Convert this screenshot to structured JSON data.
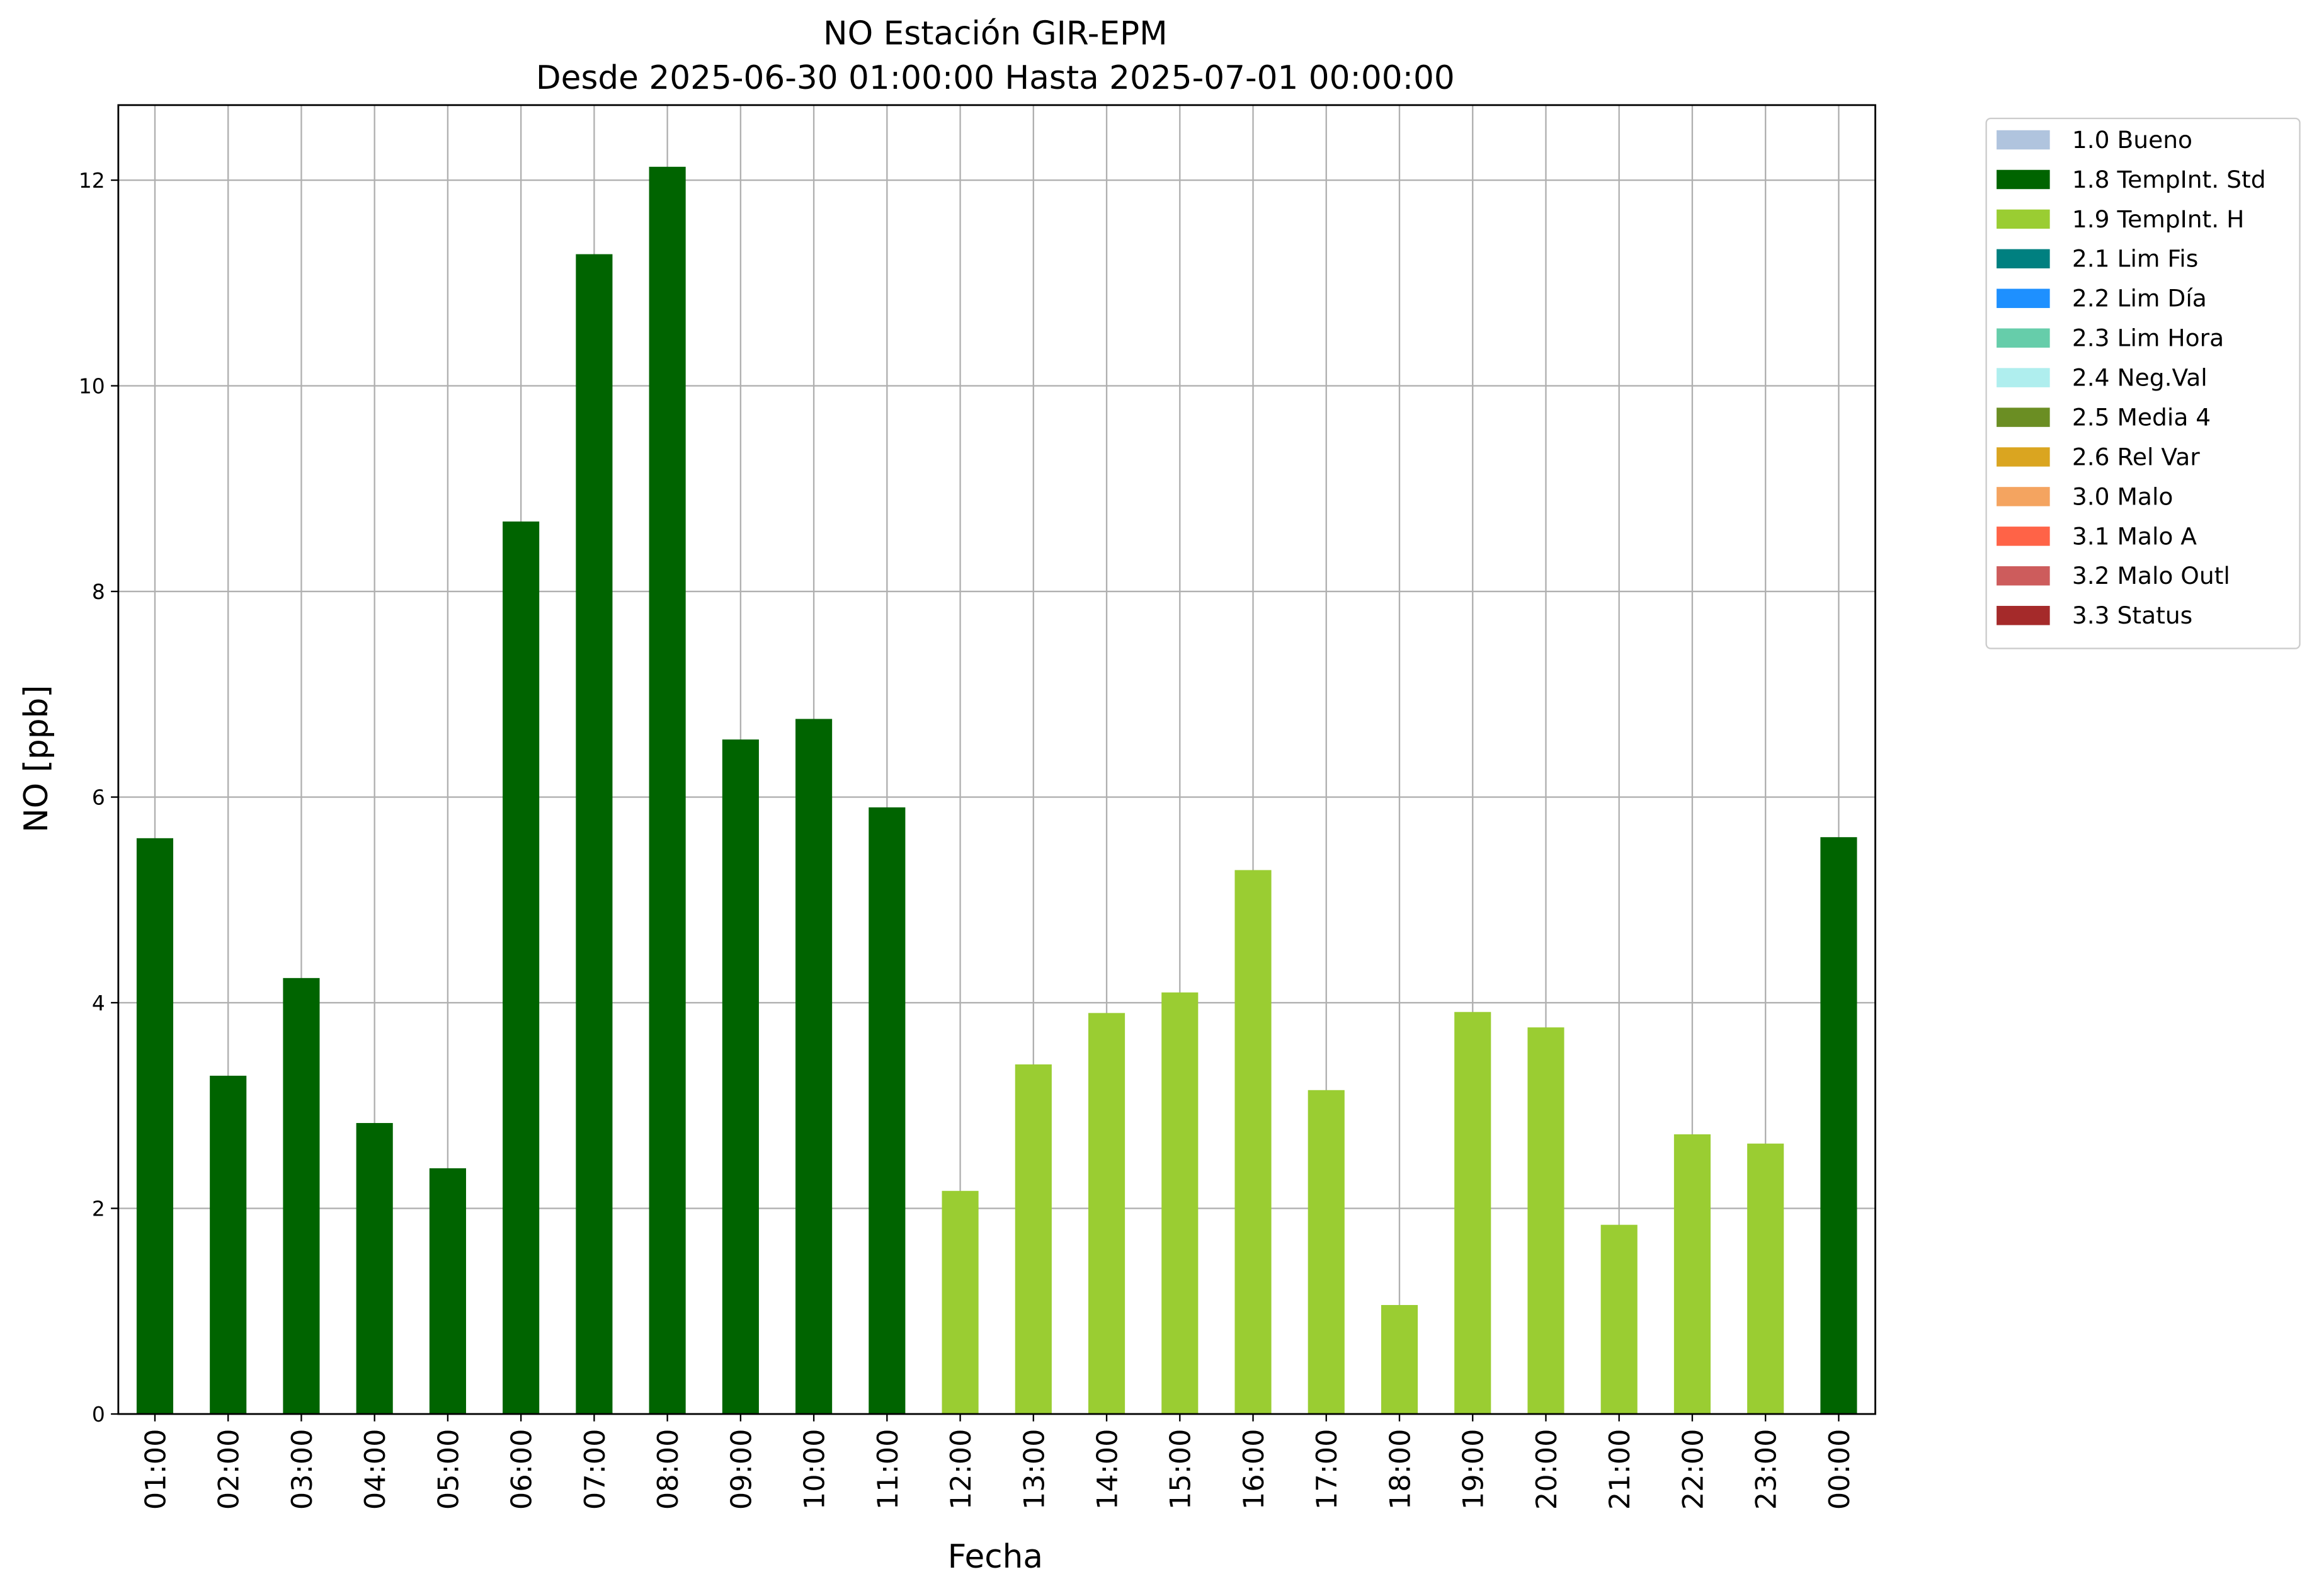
{
  "chart_data": {
    "type": "bar",
    "stacked": true,
    "title": "NO Estación GIR-EPM",
    "subtitle": "Desde 2025-06-30 01:00:00 Hasta 2025-07-01 00:00:00",
    "x_label": "Fecha",
    "y_label": "NO [ppb]",
    "categories": [
      "01:00",
      "02:00",
      "03:00",
      "04:00",
      "05:00",
      "06:00",
      "07:00",
      "08:00",
      "09:00",
      "10:00",
      "11:00",
      "12:00",
      "13:00",
      "14:00",
      "15:00",
      "16:00",
      "17:00",
      "18:00",
      "19:00",
      "20:00",
      "21:00",
      "22:00",
      "23:00",
      "00:00"
    ],
    "ylim": [
      0,
      12.73
    ],
    "yticks": [
      0,
      2,
      4,
      6,
      8,
      10,
      12
    ],
    "grid": true,
    "legend": "outside-upper-right",
    "series": [
      {
        "name": "1.0 Bueno",
        "color": "#b0c4de",
        "values": [
          null,
          null,
          null,
          null,
          null,
          null,
          null,
          null,
          null,
          null,
          null,
          null,
          null,
          null,
          null,
          null,
          null,
          null,
          null,
          null,
          null,
          null,
          null,
          null
        ]
      },
      {
        "name": "1.8 TempInt. Std",
        "color": "#006400",
        "values": [
          5.6,
          3.29,
          4.24,
          2.83,
          2.39,
          8.68,
          11.28,
          12.13,
          6.56,
          6.76,
          5.9,
          null,
          null,
          null,
          null,
          null,
          null,
          null,
          null,
          null,
          null,
          null,
          null,
          5.61
        ]
      },
      {
        "name": "1.9 TempInt. H",
        "color": "#9acd32",
        "values": [
          null,
          null,
          null,
          null,
          null,
          null,
          null,
          null,
          null,
          null,
          null,
          2.17,
          3.4,
          3.9,
          4.1,
          5.29,
          3.15,
          1.06,
          3.91,
          3.76,
          1.84,
          2.72,
          2.63,
          null
        ]
      },
      {
        "name": "2.1 Lim Fis",
        "color": "#008080",
        "values": [
          null,
          null,
          null,
          null,
          null,
          null,
          null,
          null,
          null,
          null,
          null,
          null,
          null,
          null,
          null,
          null,
          null,
          null,
          null,
          null,
          null,
          null,
          null,
          null
        ]
      },
      {
        "name": "2.2 Lim Día",
        "color": "#1e90ff",
        "values": [
          null,
          null,
          null,
          null,
          null,
          null,
          null,
          null,
          null,
          null,
          null,
          null,
          null,
          null,
          null,
          null,
          null,
          null,
          null,
          null,
          null,
          null,
          null,
          null
        ]
      },
      {
        "name": "2.3 Lim Hora",
        "color": "#66cdaa",
        "values": [
          null,
          null,
          null,
          null,
          null,
          null,
          null,
          null,
          null,
          null,
          null,
          null,
          null,
          null,
          null,
          null,
          null,
          null,
          null,
          null,
          null,
          null,
          null,
          null
        ]
      },
      {
        "name": "2.4 Neg.Val",
        "color": "#afeeee",
        "values": [
          null,
          null,
          null,
          null,
          null,
          null,
          null,
          null,
          null,
          null,
          null,
          null,
          null,
          null,
          null,
          null,
          null,
          null,
          null,
          null,
          null,
          null,
          null,
          null
        ]
      },
      {
        "name": "2.5 Media 4",
        "color": "#6b8e23",
        "values": [
          null,
          null,
          null,
          null,
          null,
          null,
          null,
          null,
          null,
          null,
          null,
          null,
          null,
          null,
          null,
          null,
          null,
          null,
          null,
          null,
          null,
          null,
          null,
          null
        ]
      },
      {
        "name": "2.6 Rel Var",
        "color": "#daa520",
        "values": [
          null,
          null,
          null,
          null,
          null,
          null,
          null,
          null,
          null,
          null,
          null,
          null,
          null,
          null,
          null,
          null,
          null,
          null,
          null,
          null,
          null,
          null,
          null,
          null
        ]
      },
      {
        "name": "3.0 Malo",
        "color": "#f4a460",
        "values": [
          null,
          null,
          null,
          null,
          null,
          null,
          null,
          null,
          null,
          null,
          null,
          null,
          null,
          null,
          null,
          null,
          null,
          null,
          null,
          null,
          null,
          null,
          null,
          null
        ]
      },
      {
        "name": "3.1 Malo A",
        "color": "#ff6347",
        "values": [
          null,
          null,
          null,
          null,
          null,
          null,
          null,
          null,
          null,
          null,
          null,
          null,
          null,
          null,
          null,
          null,
          null,
          null,
          null,
          null,
          null,
          null,
          null,
          null
        ]
      },
      {
        "name": "3.2 Malo Outl",
        "color": "#cd5c5c",
        "values": [
          null,
          null,
          null,
          null,
          null,
          null,
          null,
          null,
          null,
          null,
          null,
          null,
          null,
          null,
          null,
          null,
          null,
          null,
          null,
          null,
          null,
          null,
          null,
          null
        ]
      },
      {
        "name": "3.3 Status",
        "color": "#a52a2a",
        "values": [
          null,
          null,
          null,
          null,
          null,
          null,
          null,
          null,
          null,
          null,
          null,
          null,
          null,
          null,
          null,
          null,
          null,
          null,
          null,
          null,
          null,
          null,
          null,
          null
        ]
      }
    ]
  }
}
